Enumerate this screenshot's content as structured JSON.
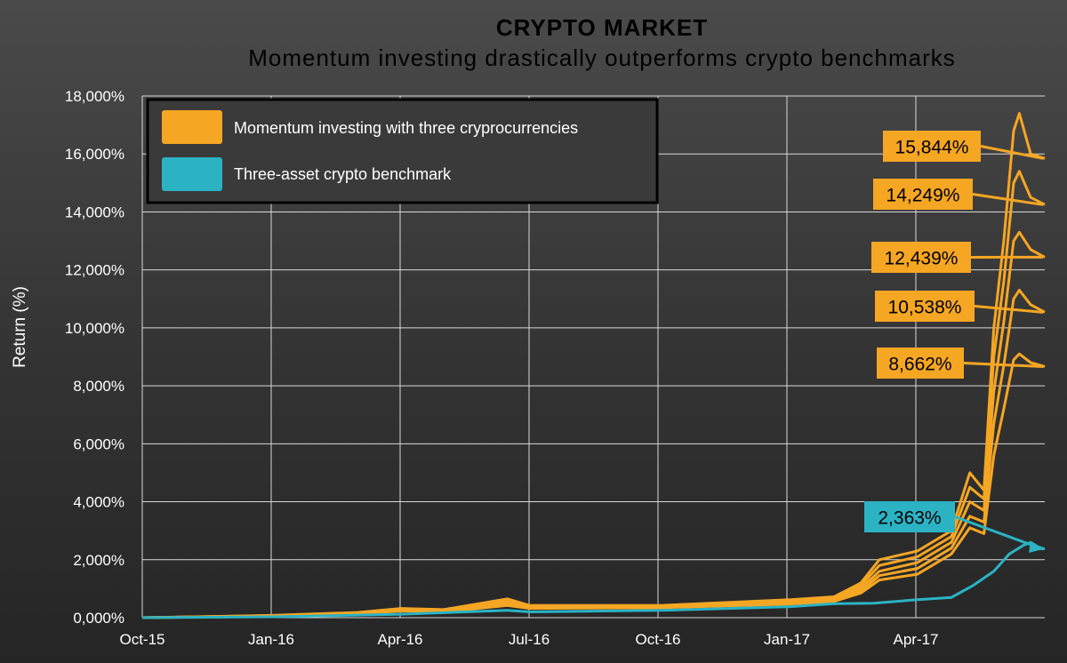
{
  "chart_data": {
    "type": "line",
    "title": "CRYPTO  MARKET",
    "subtitle": "Momentum  investing  drastically  outperforms  crypto  benchmarks",
    "xlabel": "",
    "ylabel": "Return (%)",
    "ylim": [
      0,
      18000
    ],
    "y_ticks": [
      0,
      2000,
      4000,
      6000,
      8000,
      10000,
      12000,
      14000,
      16000,
      18000
    ],
    "y_tick_labels": [
      "0,000%",
      "2,000%",
      "4,000%",
      "6,000%",
      "8,000%",
      "10,000%",
      "12,000%",
      "14,000%",
      "16,000%",
      "18,000%"
    ],
    "x_tick_labels": [
      "Oct-15",
      "Jan-16",
      "Apr-16",
      "Jul-16",
      "Oct-16",
      "Jan-17",
      "Apr-17"
    ],
    "x_range": [
      "2015-10-01",
      "2017-06-30"
    ],
    "grid": true,
    "legend_position": "top-left",
    "legend": [
      {
        "label": "Momentum  investing  with  three  cryprocurrencies",
        "color": "#f5a623"
      },
      {
        "label": "Three-asset crypto  benchmark",
        "color": "#2bb3c4"
      }
    ],
    "series": [
      {
        "group": "momentum",
        "color": "#f5a623",
        "points": [
          [
            "2015-10-01",
            0
          ],
          [
            "2016-01-01",
            80
          ],
          [
            "2016-03-01",
            180
          ],
          [
            "2016-04-01",
            320
          ],
          [
            "2016-05-01",
            280
          ],
          [
            "2016-06-15",
            650
          ],
          [
            "2016-07-01",
            420
          ],
          [
            "2016-10-01",
            420
          ],
          [
            "2017-01-01",
            620
          ],
          [
            "2017-02-01",
            720
          ],
          [
            "2017-02-20",
            1200
          ],
          [
            "2017-03-05",
            2000
          ],
          [
            "2017-04-01",
            2300
          ],
          [
            "2017-04-25",
            3000
          ],
          [
            "2017-05-08",
            5000
          ],
          [
            "2017-05-18",
            4400
          ],
          [
            "2017-05-25",
            10000
          ],
          [
            "2017-06-01",
            13000
          ],
          [
            "2017-06-08",
            16800
          ],
          [
            "2017-06-12",
            17400
          ],
          [
            "2017-06-20",
            16000
          ],
          [
            "2017-06-30",
            15844
          ]
        ]
      },
      {
        "group": "momentum",
        "color": "#f5a623",
        "points": [
          [
            "2015-10-01",
            0
          ],
          [
            "2016-01-01",
            70
          ],
          [
            "2016-03-01",
            160
          ],
          [
            "2016-04-01",
            290
          ],
          [
            "2016-05-01",
            260
          ],
          [
            "2016-06-15",
            560
          ],
          [
            "2016-07-01",
            390
          ],
          [
            "2016-10-01",
            400
          ],
          [
            "2017-01-01",
            580
          ],
          [
            "2017-02-01",
            680
          ],
          [
            "2017-02-20",
            1100
          ],
          [
            "2017-03-05",
            1800
          ],
          [
            "2017-04-01",
            2100
          ],
          [
            "2017-04-25",
            2800
          ],
          [
            "2017-05-08",
            4500
          ],
          [
            "2017-05-18",
            4100
          ],
          [
            "2017-05-25",
            9000
          ],
          [
            "2017-06-01",
            11600
          ],
          [
            "2017-06-08",
            15000
          ],
          [
            "2017-06-12",
            15400
          ],
          [
            "2017-06-20",
            14500
          ],
          [
            "2017-06-30",
            14249
          ]
        ]
      },
      {
        "group": "momentum",
        "color": "#f5a623",
        "points": [
          [
            "2015-10-01",
            0
          ],
          [
            "2016-01-01",
            60
          ],
          [
            "2016-03-01",
            150
          ],
          [
            "2016-04-01",
            270
          ],
          [
            "2016-05-01",
            240
          ],
          [
            "2016-06-15",
            500
          ],
          [
            "2016-07-01",
            360
          ],
          [
            "2016-10-01",
            380
          ],
          [
            "2017-01-01",
            540
          ],
          [
            "2017-02-01",
            640
          ],
          [
            "2017-02-20",
            1000
          ],
          [
            "2017-03-05",
            1600
          ],
          [
            "2017-04-01",
            1900
          ],
          [
            "2017-04-25",
            2600
          ],
          [
            "2017-05-08",
            4000
          ],
          [
            "2017-05-18",
            3700
          ],
          [
            "2017-05-25",
            7800
          ],
          [
            "2017-06-01",
            10200
          ],
          [
            "2017-06-08",
            13000
          ],
          [
            "2017-06-12",
            13300
          ],
          [
            "2017-06-20",
            12700
          ],
          [
            "2017-06-30",
            12439
          ]
        ]
      },
      {
        "group": "momentum",
        "color": "#f5a623",
        "points": [
          [
            "2015-10-01",
            0
          ],
          [
            "2016-01-01",
            55
          ],
          [
            "2016-03-01",
            140
          ],
          [
            "2016-04-01",
            250
          ],
          [
            "2016-05-01",
            220
          ],
          [
            "2016-06-15",
            460
          ],
          [
            "2016-07-01",
            340
          ],
          [
            "2016-10-01",
            360
          ],
          [
            "2017-01-01",
            500
          ],
          [
            "2017-02-01",
            600
          ],
          [
            "2017-02-20",
            920
          ],
          [
            "2017-03-05",
            1450
          ],
          [
            "2017-04-01",
            1700
          ],
          [
            "2017-04-25",
            2400
          ],
          [
            "2017-05-08",
            3500
          ],
          [
            "2017-05-18",
            3300
          ],
          [
            "2017-05-25",
            6700
          ],
          [
            "2017-06-01",
            8700
          ],
          [
            "2017-06-08",
            11000
          ],
          [
            "2017-06-12",
            11300
          ],
          [
            "2017-06-20",
            10800
          ],
          [
            "2017-06-30",
            10538
          ]
        ]
      },
      {
        "group": "momentum",
        "color": "#f5a623",
        "points": [
          [
            "2015-10-01",
            0
          ],
          [
            "2016-01-01",
            50
          ],
          [
            "2016-03-01",
            130
          ],
          [
            "2016-04-01",
            230
          ],
          [
            "2016-05-01",
            200
          ],
          [
            "2016-06-15",
            420
          ],
          [
            "2016-07-01",
            320
          ],
          [
            "2016-10-01",
            340
          ],
          [
            "2017-01-01",
            470
          ],
          [
            "2017-02-01",
            560
          ],
          [
            "2017-02-20",
            850
          ],
          [
            "2017-03-05",
            1300
          ],
          [
            "2017-04-01",
            1500
          ],
          [
            "2017-04-25",
            2200
          ],
          [
            "2017-05-08",
            3100
          ],
          [
            "2017-05-18",
            2900
          ],
          [
            "2017-05-25",
            5600
          ],
          [
            "2017-06-01",
            7200
          ],
          [
            "2017-06-08",
            8900
          ],
          [
            "2017-06-12",
            9100
          ],
          [
            "2017-06-20",
            8800
          ],
          [
            "2017-06-30",
            8662
          ]
        ]
      },
      {
        "group": "benchmark",
        "color": "#2bb3c4",
        "points": [
          [
            "2015-10-01",
            0
          ],
          [
            "2016-01-01",
            30
          ],
          [
            "2016-04-01",
            120
          ],
          [
            "2016-06-15",
            250
          ],
          [
            "2016-07-01",
            200
          ],
          [
            "2016-10-01",
            250
          ],
          [
            "2017-01-01",
            380
          ],
          [
            "2017-02-01",
            480
          ],
          [
            "2017-03-01",
            500
          ],
          [
            "2017-04-01",
            620
          ],
          [
            "2017-04-25",
            700
          ],
          [
            "2017-05-10",
            1100
          ],
          [
            "2017-05-25",
            1600
          ],
          [
            "2017-06-05",
            2200
          ],
          [
            "2017-06-15",
            2500
          ],
          [
            "2017-06-20",
            2600
          ],
          [
            "2017-06-25",
            2450
          ],
          [
            "2017-06-30",
            2363
          ]
        ]
      }
    ],
    "annotations": [
      {
        "label": "15,844%",
        "value": 15844,
        "color": "#f5a623",
        "text_color": "#000000"
      },
      {
        "label": "14,249%",
        "value": 14249,
        "color": "#f5a623",
        "text_color": "#000000"
      },
      {
        "label": "12,439%",
        "value": 12439,
        "color": "#f5a623",
        "text_color": "#000000"
      },
      {
        "label": "10,538%",
        "value": 10538,
        "color": "#f5a623",
        "text_color": "#000000"
      },
      {
        "label": "8,662%",
        "value": 8662,
        "color": "#f5a623",
        "text_color": "#000000"
      },
      {
        "label": "2,363%",
        "value": 2363,
        "color": "#2bb3c4",
        "text_color": "#000000"
      }
    ]
  }
}
